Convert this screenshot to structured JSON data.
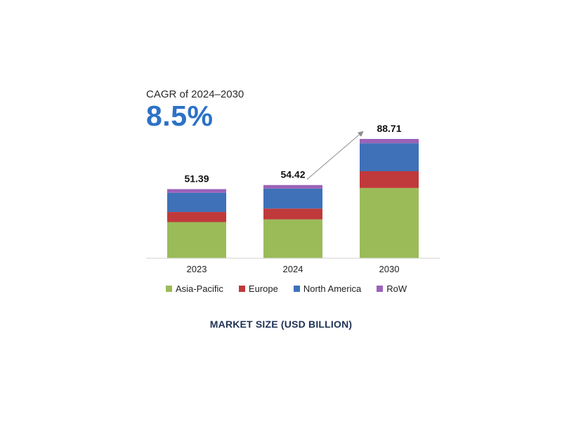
{
  "cagr": {
    "label": "CAGR of 2024–2030",
    "value": "8.5%"
  },
  "colors": {
    "asia_pacific": "#9bbb59",
    "europe": "#c0393b",
    "north_america": "#3e71b8",
    "row": "#9b62b8",
    "cagr_value": "#2c72c7",
    "arrow": "#8c8c8c",
    "caption": "#1f3255"
  },
  "chart_data": {
    "type": "bar",
    "stacked": true,
    "categories": [
      "2023",
      "2024",
      "2030"
    ],
    "totals": [
      51.39,
      54.42,
      88.71
    ],
    "total_labels": [
      "51.39",
      "54.42",
      "88.71"
    ],
    "series": [
      {
        "name": "Asia-Pacific",
        "values": [
          26.88,
          28.86,
          52.25
        ]
      },
      {
        "name": "Europe",
        "values": [
          7.53,
          8.06,
          12.46
        ]
      },
      {
        "name": "North America",
        "values": [
          14.26,
          14.86,
          20.79
        ]
      },
      {
        "name": "RoW",
        "values": [
          2.72,
          2.64,
          3.21
        ]
      }
    ],
    "ylim": [
      0,
      100
    ],
    "grid": false,
    "legend_position": "bottom",
    "annotation": "growth arrow from 2024 to 2030"
  },
  "legend": [
    {
      "label": "Asia-Pacific"
    },
    {
      "label": "Europe"
    },
    {
      "label": "North America"
    },
    {
      "label": "RoW"
    }
  ],
  "caption": "MARKET SIZE (USD BILLION)"
}
